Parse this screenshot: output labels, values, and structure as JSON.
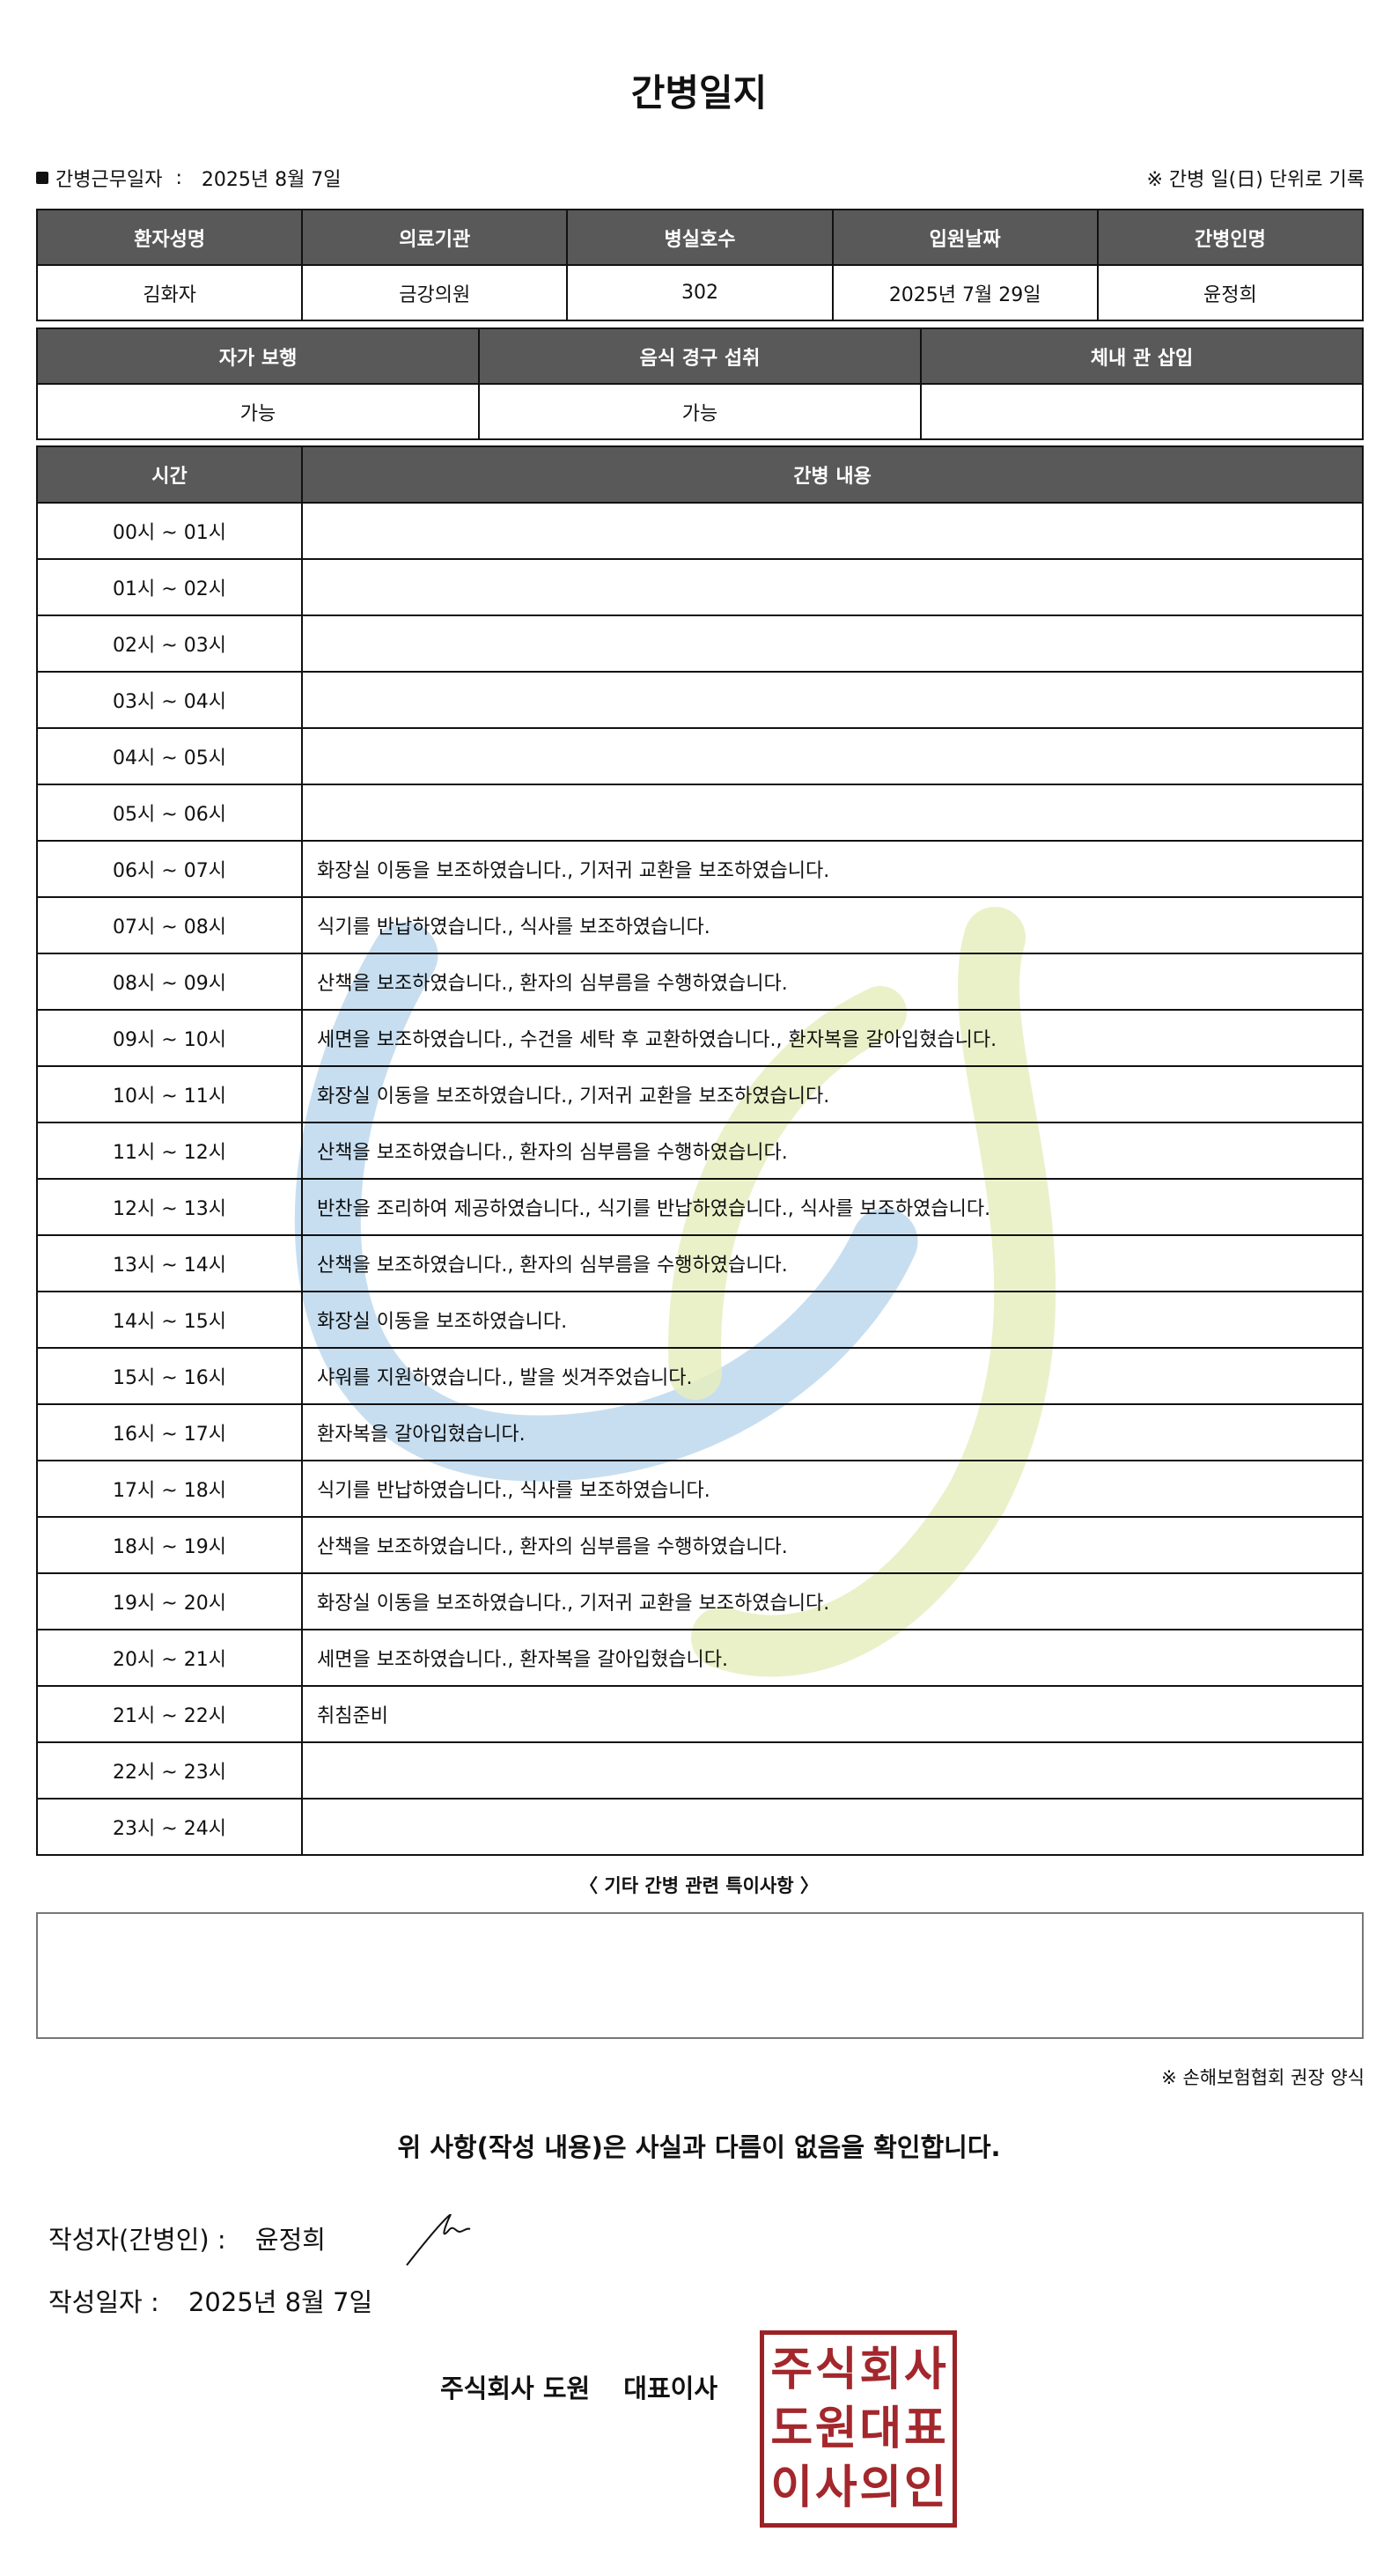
{
  "title": "간병일지",
  "work_date_label": "간병근무일자",
  "work_date": "2025년 8월 7일",
  "unit_note": "※ 간병 일(日) 단위로 기록",
  "info": {
    "headers": [
      "환자성명",
      "의료기관",
      "병실호수",
      "입원날짜",
      "간병인명"
    ],
    "values": [
      "김화자",
      "금강의원",
      "302",
      "2025년 7월 29일",
      "윤정희"
    ]
  },
  "status": {
    "headers": [
      "자가 보행",
      "음식 경구 섭취",
      "체내 관 삽입"
    ],
    "values": [
      "가능",
      "가능",
      ""
    ]
  },
  "log": {
    "headers": [
      "시간",
      "간병 내용"
    ],
    "rows": [
      {
        "time": "00시 ~ 01시",
        "content": ""
      },
      {
        "time": "01시 ~ 02시",
        "content": ""
      },
      {
        "time": "02시 ~ 03시",
        "content": ""
      },
      {
        "time": "03시 ~ 04시",
        "content": ""
      },
      {
        "time": "04시 ~ 05시",
        "content": ""
      },
      {
        "time": "05시 ~ 06시",
        "content": ""
      },
      {
        "time": "06시 ~ 07시",
        "content": "화장실 이동을 보조하였습니다., 기저귀 교환을 보조하였습니다."
      },
      {
        "time": "07시 ~ 08시",
        "content": "식기를 반납하였습니다., 식사를 보조하였습니다."
      },
      {
        "time": "08시 ~ 09시",
        "content": "산책을 보조하였습니다., 환자의 심부름을 수행하였습니다."
      },
      {
        "time": "09시 ~ 10시",
        "content": "세면을 보조하였습니다., 수건을 세탁 후 교환하였습니다., 환자복을 갈아입혔습니다."
      },
      {
        "time": "10시 ~ 11시",
        "content": "화장실 이동을 보조하였습니다., 기저귀 교환을 보조하였습니다."
      },
      {
        "time": "11시 ~ 12시",
        "content": "산책을 보조하였습니다., 환자의 심부름을 수행하였습니다."
      },
      {
        "time": "12시 ~ 13시",
        "content": "반찬을 조리하여 제공하였습니다., 식기를 반납하였습니다., 식사를 보조하였습니다."
      },
      {
        "time": "13시 ~ 14시",
        "content": "산책을 보조하였습니다., 환자의 심부름을 수행하였습니다."
      },
      {
        "time": "14시 ~ 15시",
        "content": "화장실 이동을 보조하였습니다."
      },
      {
        "time": "15시 ~ 16시",
        "content": "샤워를 지원하였습니다., 발을 씻겨주었습니다."
      },
      {
        "time": "16시 ~ 17시",
        "content": "환자복을 갈아입혔습니다."
      },
      {
        "time": "17시 ~ 18시",
        "content": "식기를 반납하였습니다., 식사를 보조하였습니다."
      },
      {
        "time": "18시 ~ 19시",
        "content": "산책을 보조하였습니다., 환자의 심부름을 수행하였습니다."
      },
      {
        "time": "19시 ~ 20시",
        "content": "화장실 이동을 보조하였습니다., 기저귀 교환을 보조하였습니다."
      },
      {
        "time": "20시 ~ 21시",
        "content": "세면을 보조하였습니다., 환자복을 갈아입혔습니다."
      },
      {
        "time": "21시 ~ 22시",
        "content": "취침준비"
      },
      {
        "time": "22시 ~ 23시",
        "content": ""
      },
      {
        "time": "23시 ~ 24시",
        "content": ""
      }
    ]
  },
  "notes_label": "〈 기타 간병 관련 특이사항 〉",
  "notes": "",
  "assoc_note": "※ 손해보험협회 권장 양식",
  "confirm": "위 사항(작성 내용)은 사실과 다름이 없음을 확인합니다.",
  "author_label": "작성자(간병인) :",
  "author": "윤정희",
  "written_label": "작성일자 :",
  "written_date": "2025년 8월 7일",
  "company": "주식회사 도원",
  "ceo": "대표이사",
  "stamp_text": "주식회사도원대표이사의인",
  "colors": {
    "header_bg": "#595959",
    "stamp": "#a3272c",
    "watermark_blue": "#b9d6ec",
    "watermark_green": "#e6efbf"
  }
}
